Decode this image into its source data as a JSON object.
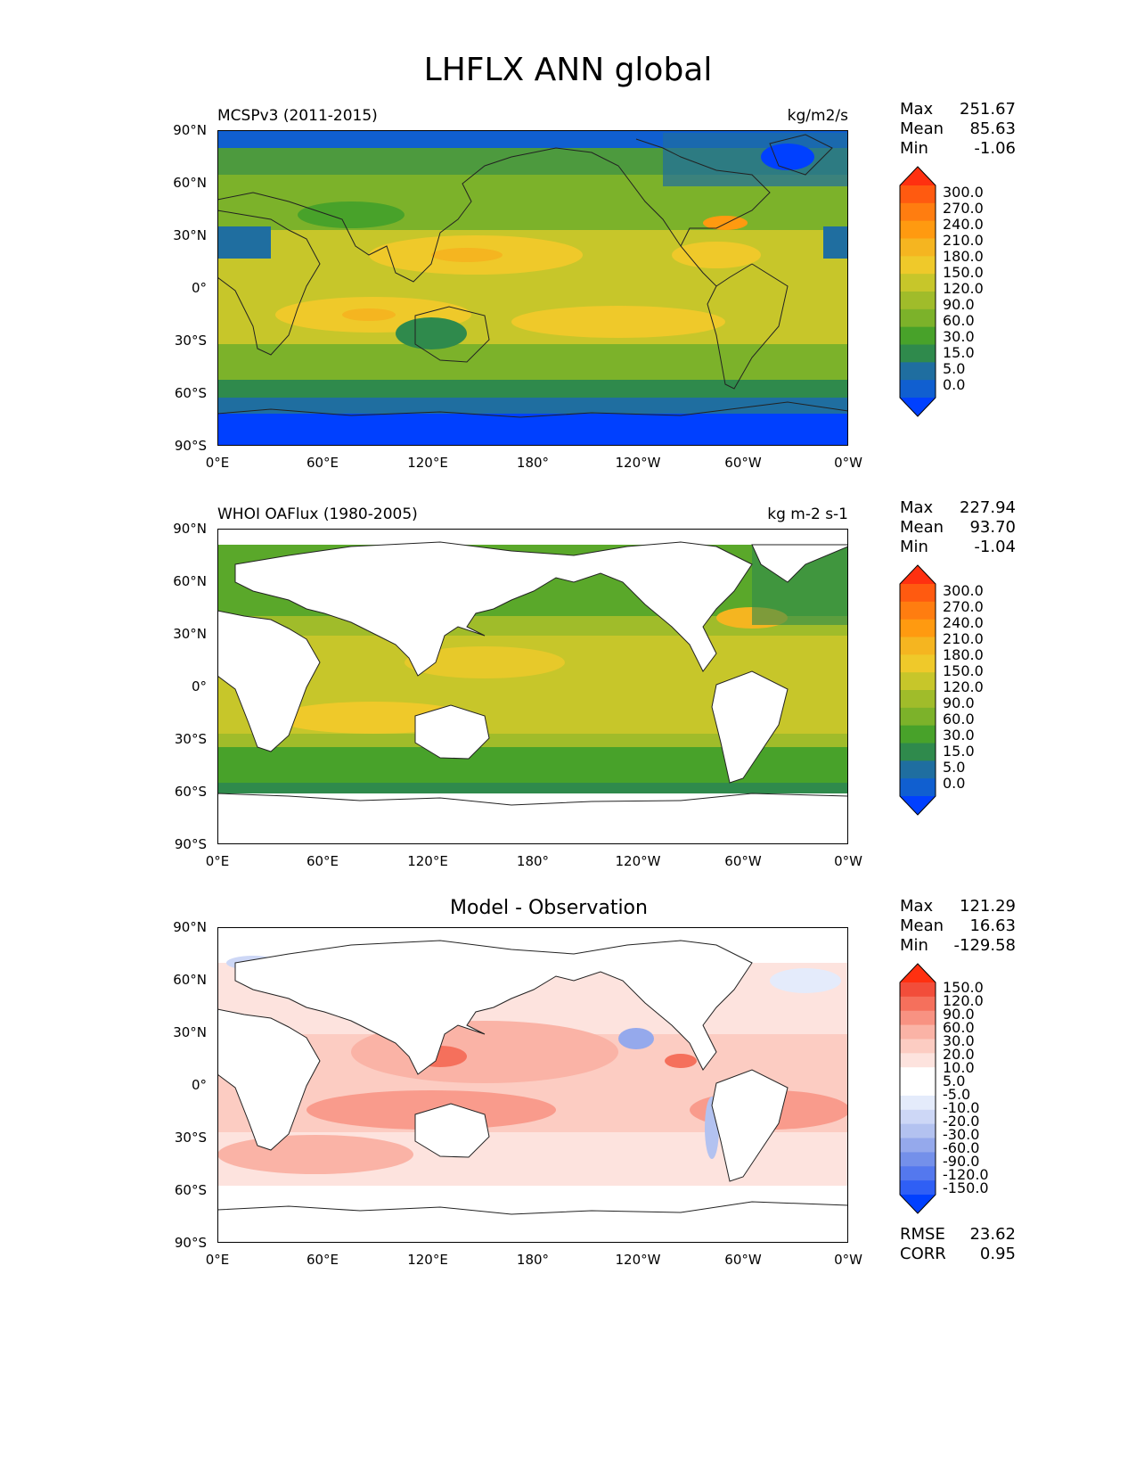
{
  "title": "LHFLX ANN global",
  "lat_ticks": [
    "90°N",
    "60°N",
    "30°N",
    "0°",
    "30°S",
    "60°S",
    "90°S"
  ],
  "lon_ticks": [
    "0°E",
    "60°E",
    "120°E",
    "180°",
    "120°W",
    "60°W",
    "0°W"
  ],
  "panels": [
    {
      "label": "MCSPv3 (2011-2015)",
      "units": "kg/m2/s",
      "stats": [
        {
          "k": "Max",
          "v": "251.67"
        },
        {
          "k": "Mean",
          "v": "85.63"
        },
        {
          "k": "Min",
          "v": "-1.06"
        }
      ],
      "colorbar": [
        "300.0",
        "270.0",
        "240.0",
        "210.0",
        "180.0",
        "150.0",
        "120.0",
        "90.0",
        "60.0",
        "30.0",
        "15.0",
        "5.0",
        "0.0"
      ]
    },
    {
      "label": "WHOI OAFlux (1980-2005)",
      "units": "kg m-2 s-1",
      "stats": [
        {
          "k": "Max",
          "v": "227.94"
        },
        {
          "k": "Mean",
          "v": "93.70"
        },
        {
          "k": "Min",
          "v": "-1.04"
        }
      ],
      "colorbar": [
        "300.0",
        "270.0",
        "240.0",
        "210.0",
        "180.0",
        "150.0",
        "120.0",
        "90.0",
        "60.0",
        "30.0",
        "15.0",
        "5.0",
        "0.0"
      ]
    },
    {
      "title": "Model - Observation",
      "stats": [
        {
          "k": "Max",
          "v": "121.29"
        },
        {
          "k": "Mean",
          "v": "16.63"
        },
        {
          "k": "Min",
          "v": "-129.58"
        }
      ],
      "colorbar": [
        "150.0",
        "120.0",
        "90.0",
        "60.0",
        "30.0",
        "20.0",
        "10.0",
        "5.0",
        "-5.0",
        "-10.0",
        "-20.0",
        "-30.0",
        "-60.0",
        "-90.0",
        "-120.0",
        "-150.0"
      ],
      "metrics": [
        {
          "k": "RMSE",
          "v": "23.62"
        },
        {
          "k": "CORR",
          "v": "0.95"
        }
      ]
    }
  ],
  "colors": {
    "seq": [
      "#ff3010",
      "#ff5a10",
      "#ff7d10",
      "#ff9a10",
      "#f5b520",
      "#efc92a",
      "#c7c62a",
      "#a0bc2a",
      "#7cb22a",
      "#48a22a",
      "#2f8a4c",
      "#1f6ea0",
      "#105fd0",
      "#0040ff"
    ],
    "div": [
      "#ff3010",
      "#f24d3a",
      "#f5705c",
      "#f89282",
      "#fab3a6",
      "#fcccc2",
      "#fde3de",
      "#ffffff",
      "#ffffff",
      "#e4ebfb",
      "#cdd7f6",
      "#b3c2f0",
      "#95a9ec",
      "#7490ea",
      "#5478ee",
      "#2f5ff5",
      "#0040ff"
    ]
  }
}
